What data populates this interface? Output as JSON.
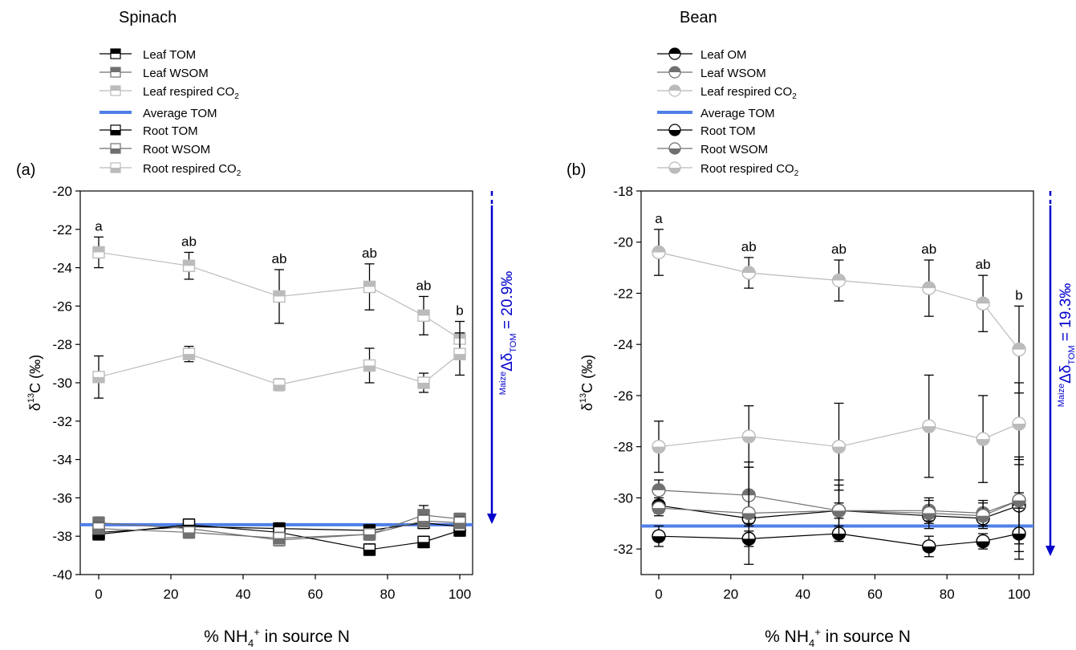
{
  "chart_data": [
    {
      "type": "scatter",
      "panel_label": "(a)",
      "title": "Spinach",
      "xlabel": "% NH4+ in source N",
      "ylabel": "δ13C (‰)",
      "xlim": [
        0,
        100
      ],
      "ylim": [
        -40,
        -20
      ],
      "xticks": [
        0,
        20,
        40,
        60,
        80,
        100
      ],
      "yticks": [
        -40,
        -38,
        -36,
        -34,
        -32,
        -30,
        -28,
        -26,
        -24,
        -22,
        -20
      ],
      "x": [
        0,
        25,
        50,
        75,
        90,
        100
      ],
      "annotation": "Maize Δδ_TOM = 20.9‰",
      "series": [
        {
          "name": "Leaf TOM",
          "marker": "square",
          "fill": "top-black",
          "line_color": "#000000",
          "values": [
            -37.8,
            -37.5,
            -37.6,
            -37.7,
            -37.3,
            -37.5
          ],
          "errors": [
            0.3,
            0.3,
            0.3,
            0.3,
            0.3,
            0.3
          ]
        },
        {
          "name": "Leaf WSOM",
          "marker": "square",
          "fill": "top-gray",
          "line_color": "#707070",
          "values": [
            -37.3,
            -37.6,
            -38.2,
            -37.9,
            -36.9,
            -37.1
          ],
          "errors": [
            0.3,
            0.3,
            0.3,
            0.3,
            0.5,
            0.3
          ]
        },
        {
          "name": "Leaf respired CO2",
          "marker": "square",
          "fill": "top-light",
          "line_color": "#bbbbbb",
          "values": [
            -23.2,
            -23.9,
            -25.5,
            -25.0,
            -26.5,
            -27.7
          ],
          "errors": [
            0.8,
            0.7,
            1.4,
            1.2,
            1.0,
            0.9
          ],
          "letters": [
            "a",
            "ab",
            "ab",
            "ab",
            "ab",
            "b"
          ]
        },
        {
          "name": "Root TOM",
          "marker": "square",
          "fill": "bottom-black",
          "line_color": "#000000",
          "values": [
            -37.9,
            -37.4,
            -37.8,
            -38.7,
            -38.3,
            -37.7
          ],
          "errors": [
            0.3,
            0.3,
            0.3,
            0.3,
            0.3,
            0.3
          ]
        },
        {
          "name": "Root WSOM",
          "marker": "square",
          "fill": "bottom-gray",
          "line_color": "#707070",
          "values": [
            -37.6,
            -37.8,
            -38.1,
            -37.9,
            -37.2,
            -37.3
          ],
          "errors": [
            0.3,
            0.3,
            0.3,
            0.3,
            0.3,
            0.3
          ]
        },
        {
          "name": "Root respired CO2",
          "marker": "square",
          "fill": "bottom-light",
          "line_color": "#bbbbbb",
          "values": [
            -29.7,
            -28.5,
            -30.1,
            -29.1,
            -30.0,
            -28.5
          ],
          "errors": [
            1.1,
            0.4,
            0.3,
            0.9,
            0.5,
            1.1
          ]
        }
      ],
      "reference_line": {
        "name": "Average TOM",
        "value": -37.4,
        "color": "#4f7fe8"
      }
    },
    {
      "type": "scatter",
      "panel_label": "(b)",
      "title": "Bean",
      "xlabel": "% NH4+ in source N",
      "ylabel": "δ13C (‰)",
      "xlim": [
        0,
        100
      ],
      "ylim": [
        -33,
        -18
      ],
      "xticks": [
        0,
        20,
        40,
        60,
        80,
        100
      ],
      "yticks": [
        -32,
        -30,
        -28,
        -26,
        -24,
        -22,
        -20,
        -18
      ],
      "x": [
        0,
        25,
        50,
        75,
        90,
        100
      ],
      "annotation": "Maize Δδ_TOM = 19.3‰",
      "series": [
        {
          "name": "Leaf OM",
          "marker": "circle",
          "fill": "top-black",
          "line_color": "#000000",
          "values": [
            -30.3,
            -30.8,
            -30.5,
            -30.7,
            -30.8,
            -30.3
          ],
          "errors": [
            0.3,
            0.3,
            0.3,
            0.3,
            0.3,
            1.8
          ]
        },
        {
          "name": "Leaf WSOM",
          "marker": "circle",
          "fill": "top-gray",
          "line_color": "#707070",
          "values": [
            -29.7,
            -29.9,
            -30.5,
            -30.5,
            -30.6,
            -30.1
          ],
          "errors": [
            0.4,
            1.1,
            1.2,
            0.4,
            0.5,
            0.3
          ]
        },
        {
          "name": "Leaf respired CO2",
          "marker": "circle",
          "fill": "top-light",
          "line_color": "#bbbbbb",
          "values": [
            -20.4,
            -21.2,
            -21.5,
            -21.8,
            -22.4,
            -24.2
          ],
          "errors": [
            0.9,
            0.6,
            0.8,
            1.1,
            1.1,
            1.7
          ],
          "letters": [
            "a",
            "ab",
            "ab",
            "ab",
            "ab",
            "b"
          ]
        },
        {
          "name": "Root TOM",
          "marker": "circle",
          "fill": "bottom-black",
          "line_color": "#000000",
          "values": [
            -31.5,
            -31.6,
            -31.4,
            -31.9,
            -31.7,
            -31.4
          ],
          "errors": [
            0.4,
            0.3,
            0.3,
            0.4,
            0.3,
            1.0
          ]
        },
        {
          "name": "Root WSOM",
          "marker": "circle",
          "fill": "bottom-gray",
          "line_color": "#707070",
          "values": [
            -30.4,
            -30.6,
            -30.5,
            -30.6,
            -30.7,
            -30.1
          ],
          "errors": [
            0.3,
            2.0,
            1.0,
            0.6,
            0.5,
            1.7
          ]
        },
        {
          "name": "Root respired CO2",
          "marker": "circle",
          "fill": "bottom-light",
          "line_color": "#bbbbbb",
          "values": [
            -28.0,
            -27.6,
            -28.0,
            -27.2,
            -27.7,
            -27.1
          ],
          "errors": [
            1.0,
            1.2,
            1.7,
            2.0,
            1.7,
            1.6
          ]
        }
      ],
      "reference_line": {
        "name": "Average TOM",
        "value": -31.1,
        "color": "#4f7fe8"
      }
    }
  ]
}
